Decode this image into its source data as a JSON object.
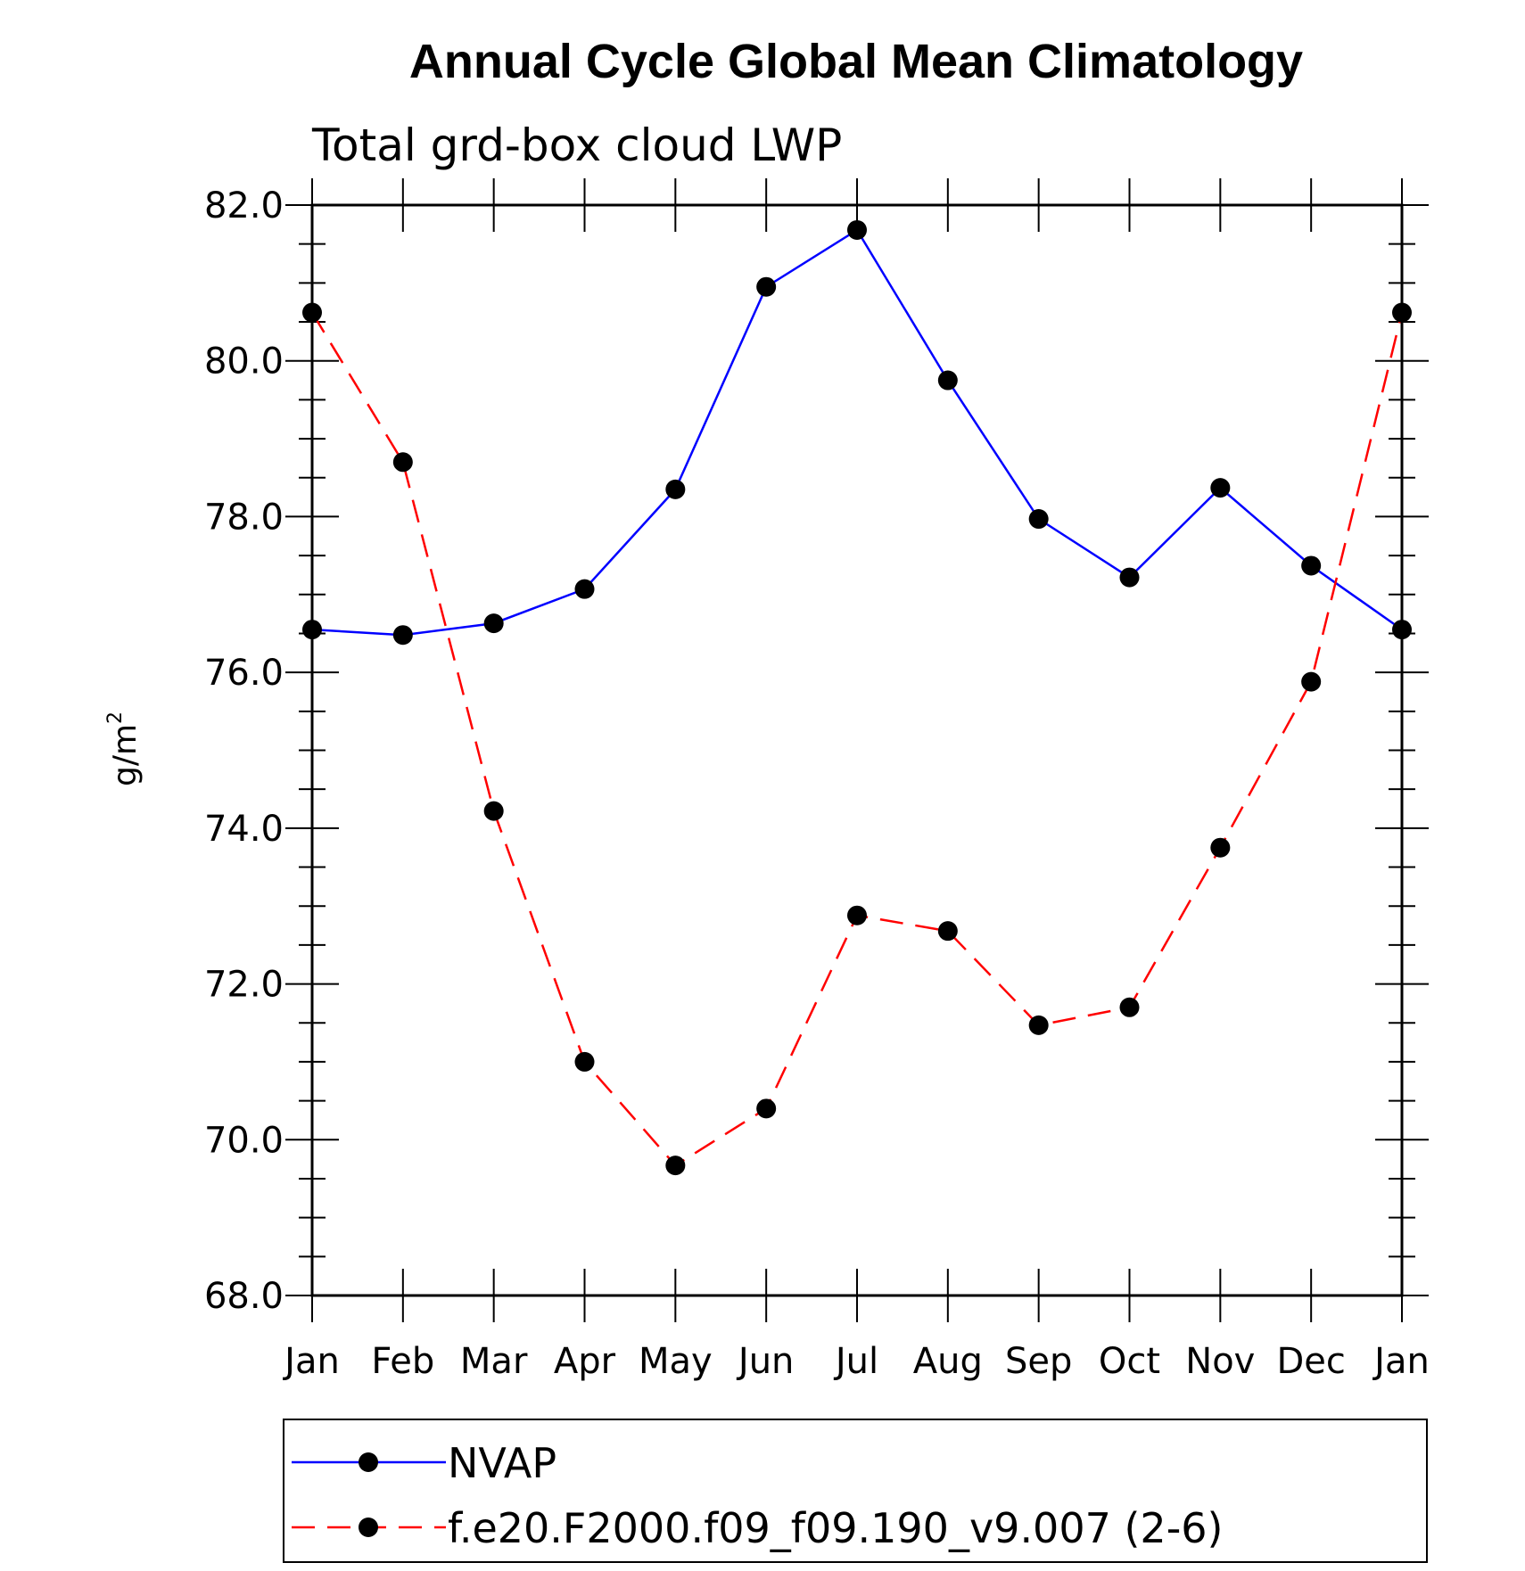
{
  "chart_data": {
    "type": "line",
    "title": "Annual Cycle Global Mean Climatology",
    "subtitle": "Total grd-box cloud LWP",
    "ylabel": "g/m",
    "ylabel_sup": "2",
    "xlabel": "",
    "categories": [
      "Jan",
      "Feb",
      "Mar",
      "Apr",
      "May",
      "Jun",
      "Jul",
      "Aug",
      "Sep",
      "Oct",
      "Nov",
      "Dec",
      "Jan"
    ],
    "ylim": [
      68.0,
      82.0
    ],
    "yticks": [
      "68.0",
      "70.0",
      "72.0",
      "74.0",
      "76.0",
      "78.0",
      "80.0",
      "82.0"
    ],
    "grid": false,
    "legend_position": "bottom",
    "series": [
      {
        "name": "NVAP",
        "color": "#0000ff",
        "line_style": "solid",
        "marker": "filled-circle",
        "values": [
          76.55,
          76.48,
          76.63,
          77.07,
          78.35,
          80.95,
          81.68,
          79.75,
          77.97,
          77.22,
          78.37,
          77.37,
          76.55
        ]
      },
      {
        "name": "f.e20.F2000.f09_f09.190_v9.007 (2-6)",
        "color": "#ff0000",
        "line_style": "dashed",
        "marker": "filled-circle",
        "values": [
          80.62,
          78.7,
          74.22,
          71.0,
          69.67,
          70.4,
          72.88,
          72.68,
          71.47,
          71.7,
          73.75,
          75.88,
          80.62
        ]
      }
    ]
  }
}
